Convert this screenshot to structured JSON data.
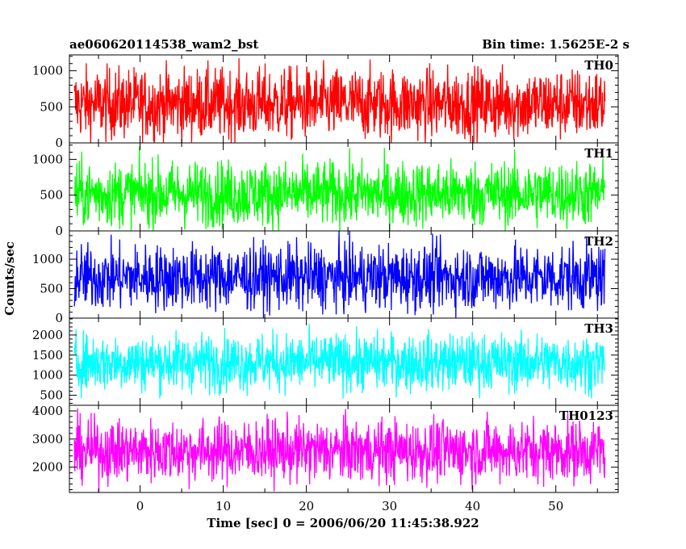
{
  "chart_data": {
    "type": "line",
    "title_left": "ae060620114538_wam2_bst",
    "title_right": "Bin time: 1.5625E-2 s",
    "xlabel": "Time [sec] 0 = 2006/06/20 11:45:38.922",
    "ylabel": "Counts/sec",
    "xlim": [
      -8.5,
      57.5
    ],
    "x_range": [
      -7.9,
      55.9
    ],
    "x_ticks": [
      0,
      10,
      20,
      30,
      40,
      50
    ],
    "panels": [
      {
        "name": "TH0",
        "color": "#ff0000",
        "ylim": [
          0,
          1220
        ],
        "y_ticks": [
          0,
          500,
          1000
        ],
        "mean": 540,
        "spread": 250,
        "floor": 0,
        "ceil": 1220
      },
      {
        "name": "TH1",
        "color": "#00ff00",
        "ylim": [
          0,
          1230
        ],
        "y_ticks": [
          0,
          500,
          1000
        ],
        "mean": 520,
        "spread": 230,
        "floor": 0,
        "ceil": 1230
      },
      {
        "name": "TH2",
        "color": "#0000ff",
        "ylim": [
          0,
          1480
        ],
        "y_ticks": [
          0,
          500,
          1000
        ],
        "mean": 690,
        "spread": 280,
        "floor": 0,
        "ceil": 1480
      },
      {
        "name": "TH3",
        "color": "#00ffff",
        "ylim": [
          250,
          2420
        ],
        "y_ticks": [
          500,
          1000,
          1500,
          2000
        ],
        "mean": 1320,
        "spread": 360,
        "floor": 420,
        "ceil": 2420
      },
      {
        "name": "TH0123",
        "color": "#ff00ff",
        "ylim": [
          1100,
          4200
        ],
        "y_ticks": [
          2000,
          3000,
          4000
        ],
        "mean": 2580,
        "spread": 560,
        "floor": 1100,
        "ceil": 4200
      }
    ]
  }
}
